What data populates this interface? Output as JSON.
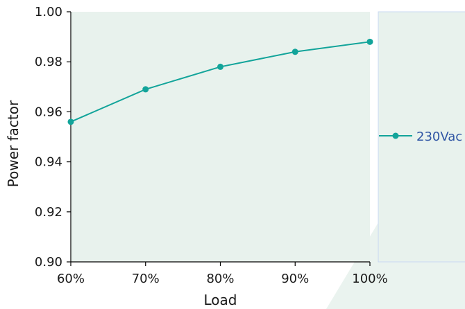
{
  "colors": {
    "series": "#12A49A",
    "plot_background": "#E8F2ED",
    "legend_background": "#E8F2ED",
    "legend_border": "#C9D8F2",
    "legend_text": "#2F55A4",
    "watermark": "#EAF3EF"
  },
  "chart_data": {
    "type": "line",
    "categories": [
      "60%",
      "70%",
      "80%",
      "90%",
      "100%"
    ],
    "series": [
      {
        "name": "230Vac",
        "values": [
          0.956,
          0.969,
          0.978,
          0.984,
          0.988
        ]
      }
    ],
    "xlabel": "Load",
    "ylabel": "Power factor",
    "ylim": [
      0.9,
      1.0
    ],
    "yticks": [
      "0.90",
      "0.92",
      "0.94",
      "0.96",
      "0.98",
      "1.00"
    ],
    "grid": false,
    "legend_position": "right"
  }
}
